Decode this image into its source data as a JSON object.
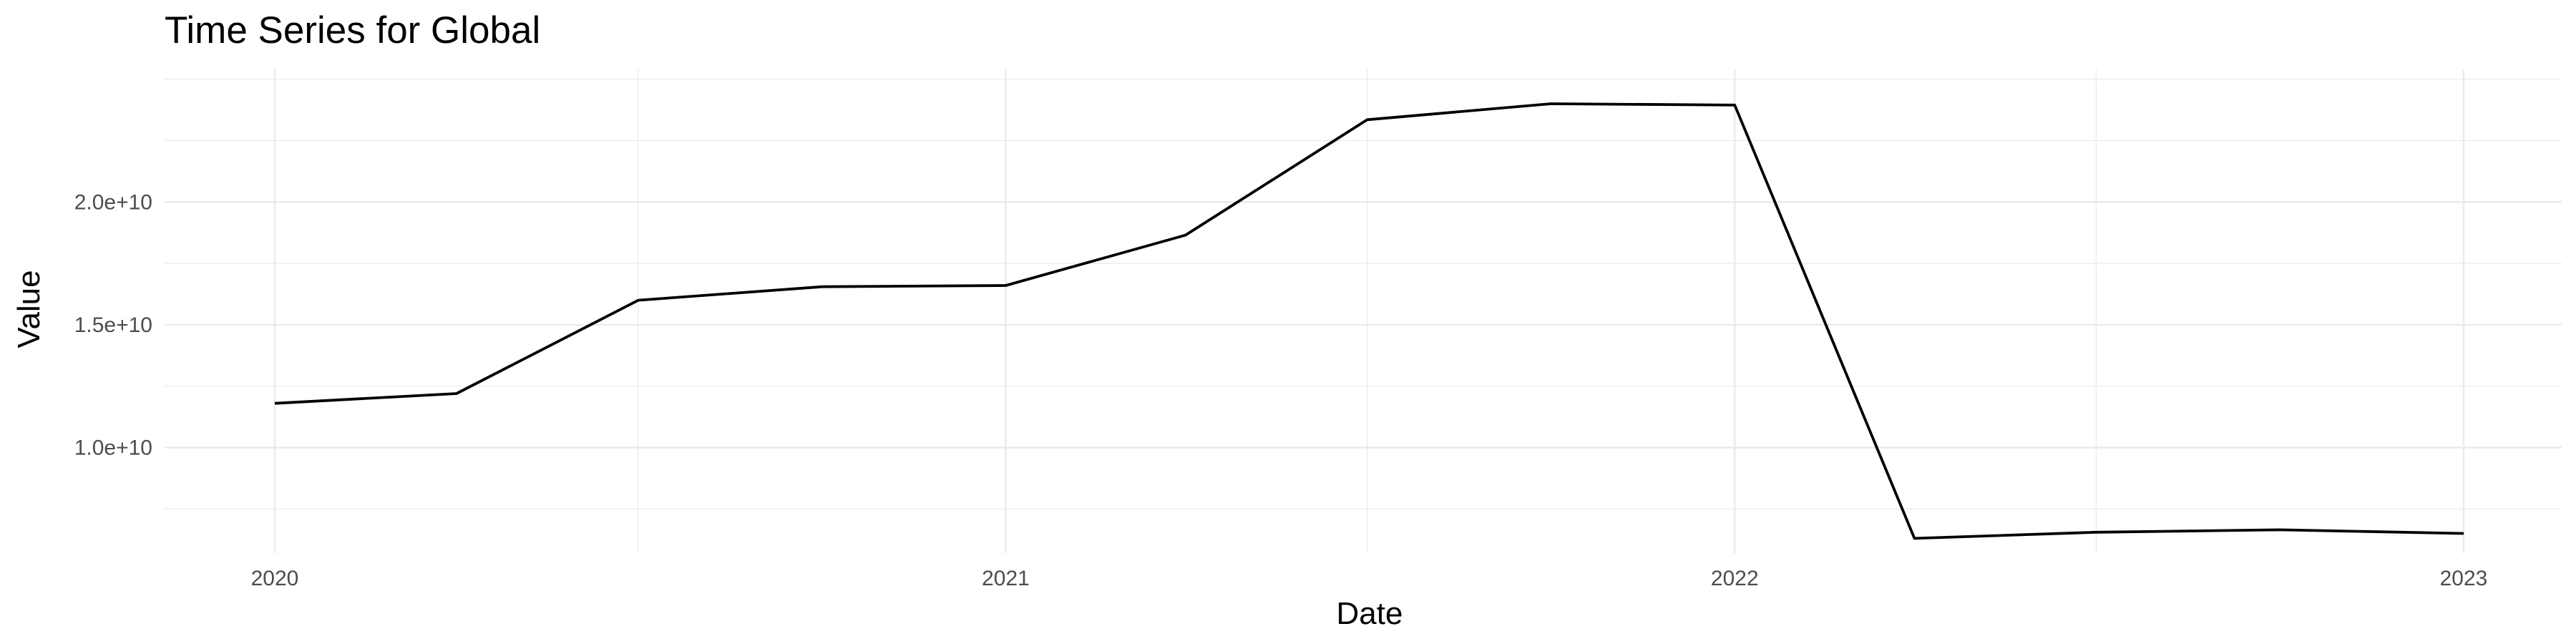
{
  "chart_data": {
    "type": "line",
    "title": "Time Series for Global",
    "xlabel": "Date",
    "ylabel": "Value",
    "x_ticks": [
      "2020",
      "2021",
      "2022",
      "2023"
    ],
    "y_ticks": [
      "1.0e+10",
      "1.5e+10",
      "2.0e+10"
    ],
    "grid": true,
    "legend": "none",
    "line_color": "#000000",
    "grid_color": "#ebebeb",
    "ylim": [
      5700000000,
      25400000000
    ],
    "series": [
      {
        "x": [
          "2020-01-01",
          "2020-04-01",
          "2020-07-01",
          "2020-10-01",
          "2021-01-01",
          "2021-04-01",
          "2021-07-01",
          "2021-10-01",
          "2022-01-01",
          "2022-04-01",
          "2022-07-01",
          "2022-10-01",
          "2023-01-01"
        ],
        "y": [
          11800000000,
          12200000000,
          16000000000,
          16550000000,
          16600000000,
          18650000000,
          23350000000,
          24000000000,
          23950000000,
          6300000000,
          6550000000,
          6650000000,
          6500000000
        ]
      }
    ]
  }
}
